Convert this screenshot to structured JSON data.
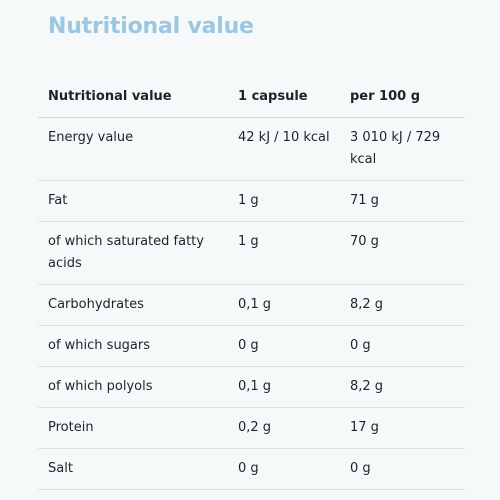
{
  "title": "Nutritional value",
  "table": {
    "headers": [
      "Nutritional value",
      "1 capsule",
      "per 100 g"
    ],
    "rows": [
      [
        "Energy value",
        "42 kJ / 10 kcal",
        "3 010 kJ / 729 kcal"
      ],
      [
        "Fat",
        "1 g",
        "71 g"
      ],
      [
        "of which saturated fatty acids",
        "1 g",
        "70 g"
      ],
      [
        "Carbohydrates",
        "0,1 g",
        "8,2 g"
      ],
      [
        "of which sugars",
        "0 g",
        "0 g"
      ],
      [
        "of which polyols",
        "0,1 g",
        "8,2 g"
      ],
      [
        "Protein",
        "0,2 g",
        "17 g"
      ],
      [
        "Salt",
        "0 g",
        "0 g"
      ]
    ]
  }
}
